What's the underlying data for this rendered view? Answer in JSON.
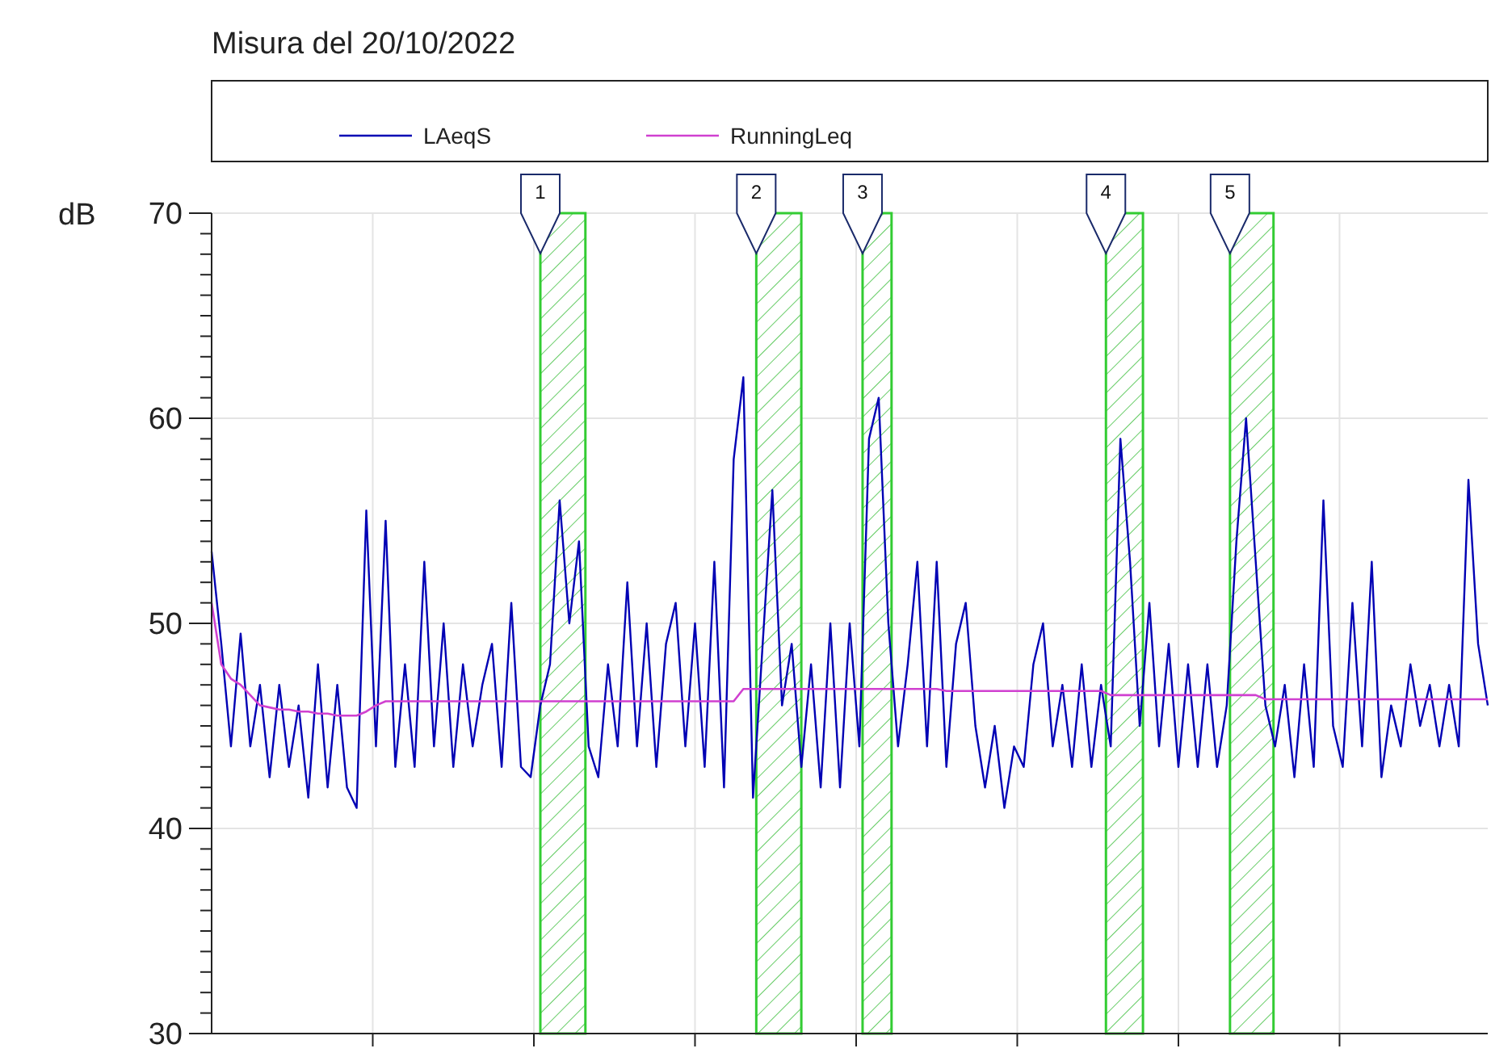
{
  "chart_data": {
    "type": "line",
    "title": "Misura del 20/10/2022",
    "ylabel": "dB",
    "categories": [
      null,
      null,
      null,
      null,
      null,
      null,
      null,
      null,
      null,
      null,
      null,
      null,
      null,
      null,
      null,
      null,
      null,
      null,
      null,
      null,
      null,
      null,
      null,
      null,
      null,
      null,
      null,
      null,
      null,
      null,
      null,
      null,
      null,
      null,
      null,
      null,
      null,
      null,
      null,
      null,
      null,
      null,
      null,
      null,
      null,
      null,
      null,
      null,
      null,
      null,
      null,
      null,
      null,
      null,
      null,
      null,
      null,
      null,
      null,
      null,
      null,
      null,
      null,
      null,
      null,
      null,
      null,
      null,
      null,
      null,
      null,
      null,
      null,
      null,
      null,
      null,
      null,
      null,
      null,
      null,
      null,
      null,
      null,
      null,
      null,
      null,
      null,
      null,
      null,
      null,
      null,
      null,
      null,
      null,
      null,
      null,
      null,
      null,
      null,
      null,
      null,
      null,
      null,
      null,
      null,
      null,
      null,
      null,
      null,
      null,
      null,
      null,
      null,
      null,
      null,
      null,
      null,
      null,
      null,
      null,
      null,
      null,
      null,
      null,
      null,
      null,
      null,
      null,
      null,
      null,
      null,
      null,
      null
    ],
    "ylim": [
      30,
      70
    ],
    "yticks": [
      30,
      {
        "value": 31,
        "label": null
      },
      {
        "value": 32,
        "label": null
      },
      {
        "value": 33,
        "label": null
      },
      {
        "value": 34,
        "label": null
      },
      {
        "value": 35,
        "label": null
      },
      {
        "value": 36,
        "label": null
      },
      {
        "value": 37,
        "label": null
      },
      {
        "value": 38,
        "label": null
      },
      {
        "value": 39,
        "label": null
      },
      40,
      {
        "value": 41,
        "label": null
      },
      {
        "value": 42,
        "label": null
      },
      {
        "value": 43,
        "label": null
      },
      {
        "value": 44,
        "label": null
      },
      {
        "value": 45,
        "label": null
      },
      {
        "value": 46,
        "label": null
      },
      {
        "value": 47,
        "label": null
      },
      {
        "value": 48,
        "label": null
      },
      {
        "value": 49,
        "label": null
      },
      50,
      {
        "value": 51,
        "label": null
      },
      {
        "value": 52,
        "label": null
      },
      {
        "value": 53,
        "label": null
      },
      {
        "value": 54,
        "label": null
      },
      {
        "value": 55,
        "label": null
      },
      {
        "value": 56,
        "label": null
      },
      {
        "value": 57,
        "label": null
      },
      {
        "value": 58,
        "label": null
      },
      {
        "value": 59,
        "label": null
      },
      60,
      {
        "value": 61,
        "label": null
      },
      {
        "value": 62,
        "label": null
      },
      {
        "value": 63,
        "label": null
      },
      {
        "value": 64,
        "label": null
      },
      {
        "value": 65,
        "label": null
      },
      {
        "value": 66,
        "label": null
      },
      {
        "value": 67,
        "label": null
      },
      {
        "value": 68,
        "label": null
      },
      {
        "value": 69,
        "label": null
      },
      70
    ],
    "tick_labels": "y",
    "grid": true,
    "annotations": [
      "1",
      "2",
      "3",
      "4",
      "5"
    ],
    "legend": "top",
    "line_style": "solid",
    "marker": "none",
    "series": [
      {
        "name": "LAeqS",
        "color": "#0000b4",
        "values": [
          53.5,
          49,
          44,
          49.5,
          44,
          47,
          42.5,
          47,
          43,
          46,
          41.5,
          48,
          42,
          47,
          42,
          41,
          55.5,
          44,
          55,
          43,
          48,
          43,
          53,
          44,
          50,
          43,
          48,
          44,
          47,
          49,
          43,
          51,
          43,
          42.5,
          46,
          48,
          56,
          50,
          54,
          44,
          42.5,
          48,
          44,
          52,
          44,
          50,
          43,
          49,
          51,
          44,
          50,
          43,
          53,
          42,
          58,
          62,
          41.5,
          49,
          56.5,
          46,
          49,
          43,
          48,
          42,
          50,
          42,
          50,
          44,
          59,
          61,
          50,
          44,
          48,
          53,
          44,
          53,
          43,
          49,
          51,
          45,
          42,
          45,
          41,
          44,
          43,
          48,
          50,
          44,
          47,
          43,
          48,
          43,
          47,
          44,
          59,
          53,
          45,
          51,
          44,
          49,
          43,
          48,
          43,
          48,
          43,
          46,
          54,
          60,
          53,
          46,
          44,
          47,
          42.5,
          48,
          43,
          56,
          45,
          43,
          51,
          44,
          53,
          42.5,
          46,
          44,
          48,
          45,
          47,
          44,
          47,
          44,
          57,
          49,
          46
        ]
      },
      {
        "name": "RunningLeq",
        "color": "#d040d0",
        "values": [
          51,
          48,
          47.3,
          47,
          46.5,
          46,
          45.9,
          45.8,
          45.8,
          45.7,
          45.7,
          45.6,
          45.6,
          45.5,
          45.5,
          45.5,
          45.7,
          46,
          46.2,
          46.2,
          46.2,
          46.2,
          46.2,
          46.2,
          46.2,
          46.2,
          46.2,
          46.2,
          46.2,
          46.2,
          46.2,
          46.2,
          46.2,
          46.2,
          46.2,
          46.2,
          46.2,
          46.2,
          46.2,
          46.2,
          46.2,
          46.2,
          46.2,
          46.2,
          46.2,
          46.2,
          46.2,
          46.2,
          46.2,
          46.2,
          46.2,
          46.2,
          46.2,
          46.2,
          46.2,
          46.8,
          46.8,
          46.8,
          46.8,
          46.8,
          46.8,
          46.8,
          46.8,
          46.8,
          46.8,
          46.8,
          46.8,
          46.8,
          46.8,
          46.8,
          46.8,
          46.8,
          46.8,
          46.8,
          46.8,
          46.8,
          46.7,
          46.7,
          46.7,
          46.7,
          46.7,
          46.7,
          46.7,
          46.7,
          46.7,
          46.7,
          46.7,
          46.7,
          46.7,
          46.7,
          46.7,
          46.7,
          46.7,
          46.5,
          46.5,
          46.5,
          46.5,
          46.5,
          46.5,
          46.5,
          46.5,
          46.5,
          46.5,
          46.5,
          46.5,
          46.5,
          46.5,
          46.5,
          46.5,
          46.3,
          46.3,
          46.3,
          46.3,
          46.3,
          46.3,
          46.3,
          46.3,
          46.3,
          46.3,
          46.3,
          46.3,
          46.3,
          46.3,
          46.3,
          46.3,
          46.3,
          46.3,
          46.3,
          46.3,
          46.3,
          46.3,
          46.3,
          46.3
        ]
      }
    ]
  }
}
